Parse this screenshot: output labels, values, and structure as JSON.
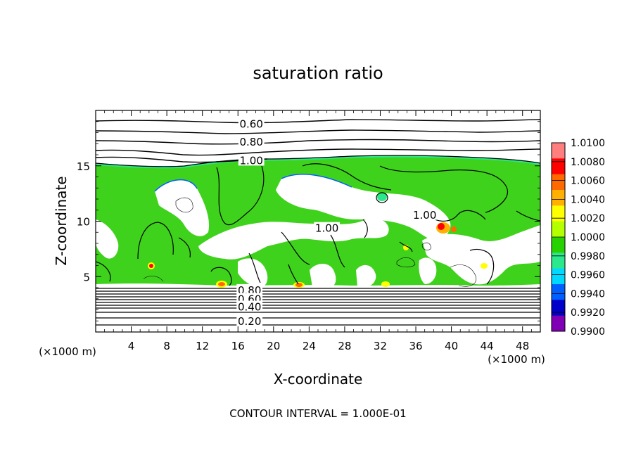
{
  "chart_data": {
    "type": "heatmap",
    "title": "saturation ratio",
    "xlabel": "X-coordinate",
    "ylabel": "Z-coordinate",
    "x_unit_label": "(×1000 m)",
    "z_unit_label": "(×1000 m)",
    "xlim": [
      0,
      50
    ],
    "ylim": [
      0,
      20
    ],
    "x_ticks": [
      4,
      8,
      12,
      16,
      20,
      24,
      28,
      32,
      36,
      40,
      44,
      48
    ],
    "y_ticks": [
      5,
      10,
      15
    ],
    "footer": "CONTOUR INTERVAL = 1.000E-01",
    "contour_labels": [
      {
        "text": "0.60",
        "x": 17.5,
        "z": 18.8
      },
      {
        "text": "0.80",
        "x": 17.5,
        "z": 17.2
      },
      {
        "text": "1.00",
        "x": 17.5,
        "z": 15.5
      },
      {
        "text": "1.00",
        "x": 26.0,
        "z": 9.4
      },
      {
        "text": "1.00",
        "x": 37.0,
        "z": 10.6
      },
      {
        "text": "0.80",
        "x": 17.3,
        "z": 3.8
      },
      {
        "text": "0.60",
        "x": 17.3,
        "z": 3.0
      },
      {
        "text": "0.40",
        "x": 17.3,
        "z": 2.3
      },
      {
        "text": "0.20",
        "x": 17.3,
        "z": 1.0
      }
    ],
    "colorbar": {
      "labels": [
        "1.0100",
        "1.0080",
        "1.0060",
        "1.0040",
        "1.0020",
        "1.0000",
        "0.9980",
        "0.9960",
        "0.9940",
        "0.9920",
        "0.9900"
      ],
      "colors": [
        "#ff7f7f",
        "#ff0000",
        "#ff6a00",
        "#ffb000",
        "#ffff00",
        "#b4ff00",
        "#28d200",
        "#2ce88c",
        "#00d8ff",
        "#0060ff",
        "#0000c8",
        "#7f00b4"
      ],
      "range": [
        0.99,
        1.01
      ]
    }
  }
}
